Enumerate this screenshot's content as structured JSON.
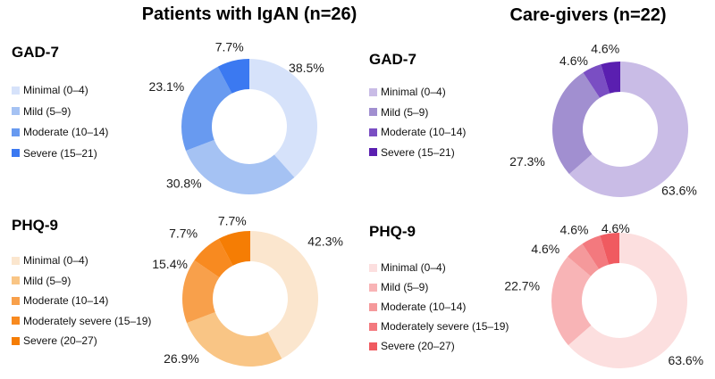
{
  "figure": {
    "left_column_title": "Patients with IgAN (n=26)",
    "right_column_title": "Care-givers (n=22)"
  },
  "chart_data": [
    {
      "type": "pie",
      "donut": true,
      "hole_ratio": 0.55,
      "start_angle": "top",
      "direction": "clockwise",
      "legend_position": "left",
      "group_title": "Patients with IgAN (n=26)",
      "scale": "GAD-7",
      "categories": [
        "Minimal (0–4)",
        "Mild (5–9)",
        "Moderate (10–14)",
        "Severe (15–21)"
      ],
      "values": [
        38.5,
        30.8,
        23.1,
        7.7
      ],
      "labels": [
        "38.5%",
        "30.8%",
        "23.1%",
        "7.7%"
      ],
      "colors": [
        "#d6e2fa",
        "#a5c2f3",
        "#689af0",
        "#3b79f1"
      ]
    },
    {
      "type": "pie",
      "donut": true,
      "hole_ratio": 0.55,
      "start_angle": "top",
      "direction": "clockwise",
      "legend_position": "left",
      "group_title": "Care-givers (n=22)",
      "scale": "GAD-7",
      "categories": [
        "Minimal (0–4)",
        "Mild (5–9)",
        "Moderate (10–14)",
        "Severe (15–21)"
      ],
      "values": [
        63.6,
        27.3,
        4.6,
        4.6
      ],
      "labels": [
        "63.6%",
        "27.3%",
        "4.6%",
        "4.6%"
      ],
      "colors": [
        "#c9bce6",
        "#a18fd0",
        "#7a4ec3",
        "#5a1fb0"
      ]
    },
    {
      "type": "pie",
      "donut": true,
      "hole_ratio": 0.55,
      "start_angle": "top",
      "direction": "clockwise",
      "legend_position": "left",
      "group_title": "Patients with IgAN (n=26)",
      "scale": "PHQ-9",
      "categories": [
        "Minimal (0–4)",
        "Mild (5–9)",
        "Moderate (10–14)",
        "Moderately severe (15–19)",
        "Severe (20–27)"
      ],
      "values": [
        42.3,
        26.9,
        15.4,
        7.7,
        7.7
      ],
      "labels": [
        "42.3%",
        "26.9%",
        "15.4%",
        "7.7%",
        "7.7%"
      ],
      "colors": [
        "#fbe6ce",
        "#f9c585",
        "#f8a04b",
        "#f88a20",
        "#f57d04"
      ]
    },
    {
      "type": "pie",
      "donut": true,
      "hole_ratio": 0.55,
      "start_angle": "top",
      "direction": "clockwise",
      "legend_position": "left",
      "group_title": "Care-givers (n=22)",
      "scale": "PHQ-9",
      "categories": [
        "Minimal (0–4)",
        "Mild (5–9)",
        "Moderate (10–14)",
        "Moderately severe (15–19)",
        "Severe (20–27)"
      ],
      "values": [
        63.6,
        22.7,
        4.6,
        4.6,
        4.6
      ],
      "labels": [
        "63.6%",
        "22.7%",
        "4.6%",
        "4.6%",
        "4.6%"
      ],
      "colors": [
        "#fcdfdf",
        "#f8b4b6",
        "#f5999b",
        "#f3797e",
        "#f05a60"
      ]
    }
  ]
}
